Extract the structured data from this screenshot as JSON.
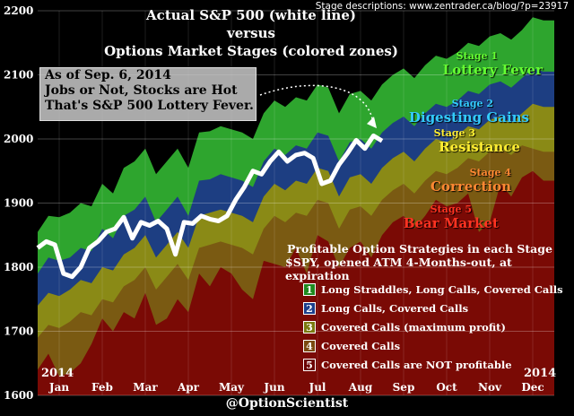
{
  "source": "Stage descriptions: www.zentrader.ca/blog/?p=23917",
  "title": {
    "line1": "Actual S&P 500 (white line)",
    "line2": "versus",
    "line3": "Options Market Stages (colored zones)"
  },
  "note": {
    "line1": "As of Sep. 6, 2014",
    "line2": "Jobs or Not, Stocks are Hot",
    "line3": "That's S&P 500 Lottery Fever."
  },
  "stages": [
    {
      "num": "Stage 1",
      "name": "Lottery Fever",
      "color": "#66ff33"
    },
    {
      "num": "Stage 2",
      "name": "Digesting Gains",
      "color": "#33ccff"
    },
    {
      "num": "Stage 3",
      "name": "Resistance",
      "color": "#ffee33"
    },
    {
      "num": "Stage 4",
      "name": "Correction",
      "color": "#ff8833"
    },
    {
      "num": "Stage 5",
      "name": "Bear Market",
      "color": "#ff3322"
    }
  ],
  "strategies": {
    "title1": "Profitable Option Strategies in each Stage",
    "title2": "$SPY, opened ATM 4-Months-out, at expiration",
    "items": [
      {
        "num": "1",
        "label": "Long Straddles, Long Calls, Covered Calls",
        "color": "#1f8a1f"
      },
      {
        "num": "2",
        "label": "Long Calls, Covered Calls",
        "color": "#1c3f8c"
      },
      {
        "num": "3",
        "label": "Covered Calls (maximum profit)",
        "color": "#7a7a10"
      },
      {
        "num": "4",
        "label": "Covered Calls",
        "color": "#7a4a10"
      },
      {
        "num": "5",
        "label": "Covered Calls are NOT profitable",
        "color": "#6a0000"
      }
    ]
  },
  "footer": "@OptionScientist",
  "chart_data": {
    "type": "area",
    "ylim": [
      1600,
      2200
    ],
    "yticks": [
      "1600",
      "1700",
      "1800",
      "1900",
      "2000",
      "2100",
      "2200"
    ],
    "xticks": [
      "Jan",
      "Feb",
      "Mar",
      "Apr",
      "May",
      "Jun",
      "Jul",
      "Aug",
      "Sep",
      "Oct",
      "Nov",
      "Dec"
    ],
    "year_start": "2014",
    "year_end": "2014",
    "x": [
      0.5,
      0.75,
      1.0,
      1.25,
      1.5,
      1.75,
      2.0,
      2.25,
      2.5,
      2.75,
      3.0,
      3.25,
      3.5,
      3.75,
      4.0,
      4.25,
      4.5,
      4.75,
      5.0,
      5.25,
      5.5,
      5.75,
      6.0,
      6.25,
      6.5,
      6.75,
      7.0,
      7.25,
      7.5,
      7.75,
      8.0,
      8.25,
      8.5,
      8.75,
      9.0,
      9.25,
      9.5,
      9.75,
      10.0,
      10.25,
      10.5,
      10.75,
      11.0,
      11.25,
      11.5,
      11.75,
      12.0,
      12.25
    ],
    "series": [
      {
        "name": "Stage 1",
        "color": "#2ea52e",
        "values": [
          1855,
          1880,
          1878,
          1885,
          1900,
          1895,
          1930,
          1915,
          1955,
          1965,
          1985,
          1945,
          1965,
          1985,
          1955,
          2010,
          2012,
          2020,
          2015,
          2010,
          2000,
          2040,
          2060,
          2050,
          2065,
          2060,
          2085,
          2080,
          2040,
          2070,
          2075,
          2060,
          2085,
          2100,
          2110,
          2095,
          2115,
          2130,
          2125,
          2135,
          2150,
          2145,
          2160,
          2165,
          2155,
          2170,
          2190,
          2185
        ]
      },
      {
        "name": "Stage 2",
        "color": "#1d3e82",
        "values": [
          1790,
          1815,
          1810,
          1815,
          1830,
          1825,
          1860,
          1845,
          1880,
          1890,
          1910,
          1870,
          1890,
          1910,
          1880,
          1935,
          1937,
          1945,
          1940,
          1935,
          1925,
          1965,
          1985,
          1975,
          1990,
          1985,
          2010,
          2005,
          1965,
          1995,
          2000,
          1985,
          2010,
          2025,
          2035,
          2020,
          2040,
          2055,
          2050,
          2060,
          2075,
          2070,
          2085,
          2090,
          2080,
          2095,
          2110,
          2105
        ]
      },
      {
        "name": "Stage 3",
        "color": "#8a8a16",
        "values": [
          1740,
          1760,
          1755,
          1765,
          1780,
          1775,
          1800,
          1795,
          1820,
          1830,
          1850,
          1815,
          1835,
          1855,
          1830,
          1880,
          1885,
          1890,
          1885,
          1880,
          1870,
          1910,
          1930,
          1920,
          1935,
          1930,
          1955,
          1950,
          1910,
          1940,
          1945,
          1930,
          1955,
          1970,
          1980,
          1965,
          1985,
          2000,
          1995,
          2005,
          2020,
          2015,
          2030,
          2035,
          2025,
          2040,
          2055,
          2050
        ]
      },
      {
        "name": "Stage 4",
        "color": "#7a5a12",
        "values": [
          1690,
          1710,
          1705,
          1715,
          1730,
          1725,
          1750,
          1745,
          1770,
          1780,
          1800,
          1765,
          1785,
          1805,
          1780,
          1830,
          1835,
          1840,
          1835,
          1830,
          1820,
          1860,
          1880,
          1870,
          1885,
          1880,
          1905,
          1900,
          1860,
          1890,
          1895,
          1880,
          1905,
          1920,
          1930,
          1915,
          1935,
          1950,
          1945,
          1955,
          1970,
          1965,
          1980,
          1985,
          1975,
          1990,
          1985,
          1980
        ]
      },
      {
        "name": "Stage 5",
        "color": "#7a0a05",
        "values": [
          1640,
          1665,
          1630,
          1635,
          1650,
          1680,
          1720,
          1700,
          1730,
          1720,
          1760,
          1710,
          1720,
          1750,
          1730,
          1790,
          1770,
          1800,
          1790,
          1765,
          1750,
          1810,
          1805,
          1800,
          1830,
          1790,
          1850,
          1840,
          1800,
          1830,
          1840,
          1815,
          1850,
          1870,
          1880,
          1860,
          1880,
          1905,
          1895,
          1900,
          1915,
          1855,
          1870,
          1930,
          1910,
          1940,
          1950,
          1935
        ]
      }
    ],
    "sp500": {
      "name": "Actual S&P 500",
      "color": "#ffffff",
      "x": [
        0.5,
        0.7,
        0.9,
        1.1,
        1.3,
        1.5,
        1.7,
        1.9,
        2.1,
        2.3,
        2.5,
        2.7,
        2.9,
        3.1,
        3.3,
        3.5,
        3.7,
        3.9,
        4.1,
        4.3,
        4.5,
        4.7,
        4.9,
        5.1,
        5.3,
        5.5,
        5.7,
        5.9,
        6.1,
        6.3,
        6.5,
        6.7,
        6.9,
        7.1,
        7.3,
        7.5,
        7.7,
        7.9,
        8.1,
        8.3,
        8.5
      ],
      "values": [
        1830,
        1840,
        1835,
        1790,
        1785,
        1800,
        1830,
        1840,
        1855,
        1860,
        1878,
        1845,
        1870,
        1865,
        1872,
        1860,
        1820,
        1870,
        1868,
        1880,
        1875,
        1872,
        1880,
        1905,
        1925,
        1950,
        1945,
        1965,
        1980,
        1965,
        1975,
        1978,
        1970,
        1930,
        1935,
        1960,
        1978,
        1998,
        1985,
        2005,
        1997
      ]
    }
  }
}
